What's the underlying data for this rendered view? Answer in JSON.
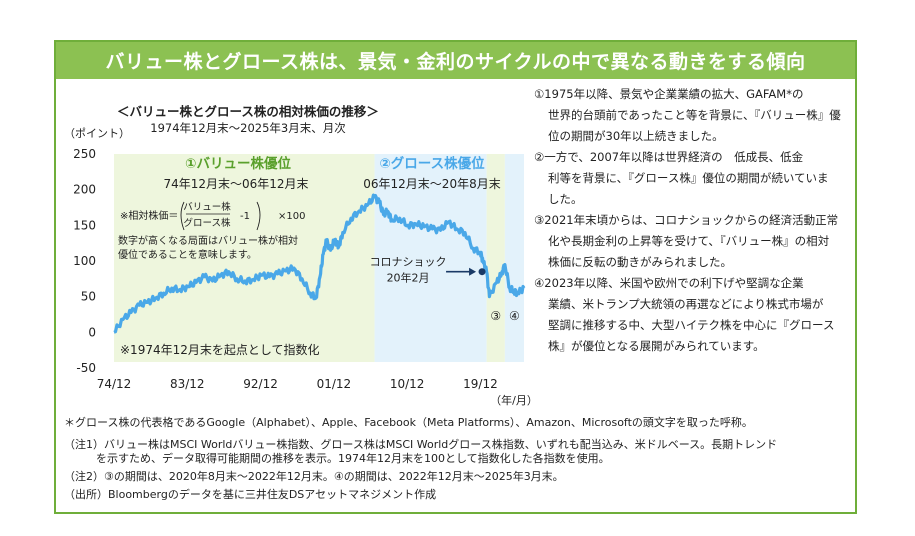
{
  "title": "バリュー株とグロース株は、景気・金利のサイクルの中で異なる動きをする傾向",
  "chart_data": {
    "type": "line",
    "title": "＜バリュー株とグロース株の相対株価の推移＞",
    "subtitle": "1974年12月末～2025年3月末、月次",
    "ylabel": "（ポイント）",
    "xlabel": "（年/月）",
    "ylim": [
      -50,
      250
    ],
    "yticks": [
      "250",
      "200",
      "150",
      "100",
      "50",
      "0",
      "-50"
    ],
    "xlim": [
      1974.9,
      2025.25
    ],
    "xticks": [
      {
        "x": 1974.9,
        "label": "74/12"
      },
      {
        "x": 1983.9,
        "label": "83/12"
      },
      {
        "x": 1992.9,
        "label": "92/12"
      },
      {
        "x": 2001.9,
        "label": "01/12"
      },
      {
        "x": 2010.9,
        "label": "10/12"
      },
      {
        "x": 2019.9,
        "label": "19/12"
      }
    ],
    "x": [
      1974.9,
      1976,
      1977,
      1978,
      1979,
      1980,
      1981,
      1982,
      1983,
      1984,
      1985,
      1986,
      1987,
      1988,
      1989,
      1990,
      1991,
      1992,
      1993,
      1994,
      1995,
      1996,
      1997,
      1998,
      1999,
      1999.7,
      2000.2,
      2000.6,
      2001,
      2001.5,
      2002,
      2002.5,
      2003,
      2004,
      2005,
      2006,
      2006.9,
      2007.5,
      2008,
      2008.5,
      2009,
      2010,
      2011,
      2012,
      2013,
      2014,
      2015,
      2016,
      2017,
      2018,
      2019,
      2019.9,
      2020.2,
      2020.66,
      2021,
      2021.9,
      2022.5,
      2022.9,
      2023.5,
      2024,
      2024.5,
      2025.25
    ],
    "values": [
      0,
      18,
      28,
      38,
      42,
      48,
      55,
      62,
      60,
      64,
      70,
      78,
      72,
      80,
      85,
      75,
      72,
      74,
      80,
      78,
      82,
      86,
      90,
      75,
      55,
      48,
      78,
      110,
      128,
      115,
      130,
      120,
      140,
      160,
      170,
      178,
      190,
      182,
      165,
      170,
      158,
      160,
      150,
      152,
      148,
      145,
      143,
      155,
      145,
      140,
      118,
      112,
      100,
      85,
      50,
      70,
      82,
      95,
      62,
      58,
      55,
      62
    ],
    "phases": [
      {
        "label": "①バリュー株優位",
        "period": "74年12月末～06年12月末",
        "from": 1974.9,
        "to": 2006.9,
        "color": "#eef6dd"
      },
      {
        "label": "②グロース株優位",
        "period": "06年12月末～20年8月末",
        "from": 2006.9,
        "to": 2020.66,
        "color": "#e3f2fb"
      },
      {
        "label": "③",
        "from": 2020.66,
        "to": 2022.9,
        "color": "#eef6dd"
      },
      {
        "label": "④",
        "from": 2022.9,
        "to": 2025.25,
        "color": "#e3f2fb"
      }
    ],
    "annotation_covid": {
      "label_line1": "コロナショック",
      "label_line2": "20年2月",
      "x": 2020.1,
      "y": 85
    },
    "formula": {
      "prefix": "※相対株価＝",
      "numerator": "バリュー株",
      "denominator": "グロース株",
      "minus": "-1",
      "suffix": "×100"
    },
    "note_text1": "数字が高くなる局面はバリュー株が相対",
    "note_text2": "優位であることを意味します。",
    "base_note": "※1974年12月末を起点として指数化"
  },
  "side_notes": [
    "①1975年以降、景気や企業業績の拡大、GAFAM*の",
    "世界的台頭前であったこと等を背景に、『バリュー株』優",
    "位の期間が30年以上続きました。",
    "②一方で、2007年以降は世界経済の　低成長、低金",
    "利等を背景に、『グロース株』優位の期間が続いていま",
    "した。",
    "③2021年末頃からは、コロナショックからの経済活動正常",
    "化や長期金利の上昇等を受けて、『バリュー株』の相対",
    "株価に反転の動きがみられました。",
    "④2023年以降、米国や欧州での利下げや堅調な企業",
    "業績、米トランプ大統領の再選などにより株式市場が",
    "堅調に推移する中、大型ハイテク株を中心に『グロース",
    "株』が優位となる展開がみられています。"
  ],
  "footer": {
    "gafam": "＊グロース株の代表格であるGoogle（Alphabet）、Apple、Facebook（Meta Platforms）、Amazon、Microsoftの頭文字を取った呼称。",
    "note1a": "（注1）バリュー株はMSCI Worldバリュー株指数、グロース株はMSCI Worldグロース株指数、いずれも配当込み、米ドルベース。長期トレンド",
    "note1b": "を示すため、データ取得可能期間の推移を表示。1974年12月末を100として指数化した各指数を使用。",
    "note2": "（注2）③の期間は、2020年8月末～2022年12月末。④の期間は、2022年12月末～2025年3月末。",
    "source": "（出所）Bloombergのデータを基に三井住友DSアセットマネジメント作成"
  },
  "colors": {
    "line": "#4aa8e8",
    "title_bg": "#8cc152",
    "border": "#6fae3a",
    "phase1_text": "#5aa02c",
    "phase2_text": "#4aa8e8",
    "marker": "#1a3a66"
  }
}
